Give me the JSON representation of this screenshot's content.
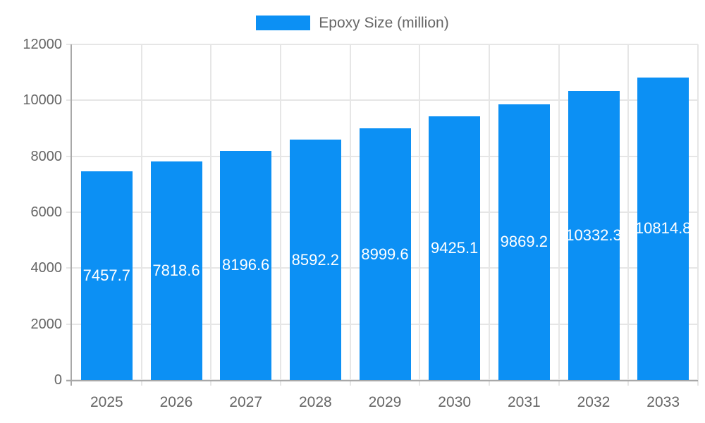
{
  "chart_data": {
    "type": "bar",
    "title": "",
    "legend": "Epoxy Size (million)",
    "legend_position": "top",
    "categories": [
      "2025",
      "2026",
      "2027",
      "2028",
      "2029",
      "2030",
      "2031",
      "2032",
      "2033"
    ],
    "series": [
      {
        "name": "Epoxy Size (million)",
        "values": [
          7457.7,
          7818.6,
          8196.6,
          8592.2,
          8999.6,
          9425.1,
          9869.2,
          10332.3,
          10814.8
        ]
      }
    ],
    "value_labels": [
      "7457.7",
      "7818.6",
      "8196.6",
      "8592.2",
      "8999.6",
      "9425.1",
      "9869.2",
      "10332.3",
      "10814.8"
    ],
    "xlabel": "",
    "ylabel": "",
    "ylim": [
      0,
      12000
    ],
    "yticks": [
      "0",
      "2000",
      "4000",
      "6000",
      "8000",
      "10000",
      "12000"
    ],
    "grid": "on"
  },
  "colors": {
    "bar_fill": "#0C90F4",
    "bar_value_text": "#ffffff",
    "grid_line": "#e6e6e6",
    "axis_line": "#a8a8a8",
    "tick_text": "#666666",
    "legend_text": "#666666",
    "background": "#ffffff"
  }
}
